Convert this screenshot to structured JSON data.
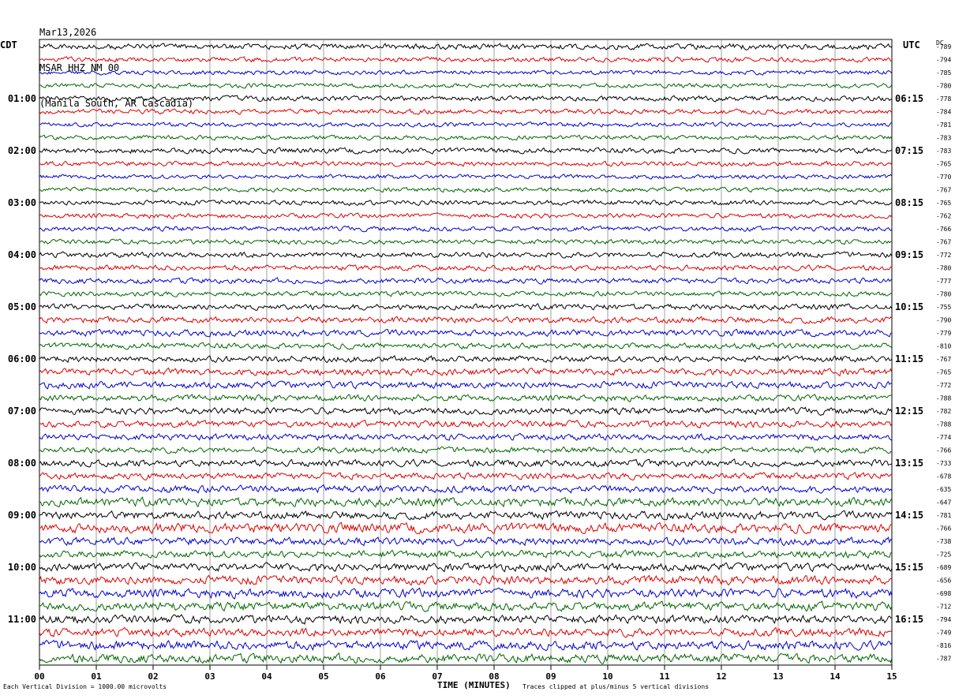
{
  "header": {
    "date": "Mar13,2026",
    "station": "MSAR HHZ NM 00",
    "location": "(Manila South, AR Cascadia)"
  },
  "chart_data": {
    "type": "line",
    "left_tz": "CDT",
    "right_tz": "UTC",
    "dc_label": "DC",
    "xlabel": "TIME (MINUTES)",
    "xticks": [
      "00",
      "01",
      "02",
      "03",
      "04",
      "05",
      "06",
      "07",
      "08",
      "09",
      "10",
      "11",
      "12",
      "13",
      "14",
      "15"
    ],
    "xlim": [
      0,
      15
    ],
    "left_hour_labels": [
      "01:00",
      "02:00",
      "03:00",
      "04:00",
      "05:00",
      "06:00",
      "07:00",
      "08:00",
      "09:00",
      "10:00",
      "11:00"
    ],
    "right_hour_labels": [
      "06:15",
      "07:15",
      "08:15",
      "09:15",
      "10:15",
      "11:15",
      "12:15",
      "13:15",
      "14:15",
      "15:15",
      "16:15"
    ],
    "trace_colors": [
      "#000000",
      "#dd0000",
      "#0000cc",
      "#006600"
    ],
    "dc_offsets": [
      -789,
      -794,
      -785,
      -780,
      -778,
      -784,
      -781,
      -783,
      -783,
      -765,
      -770,
      -767,
      -765,
      -762,
      -766,
      -767,
      -772,
      -780,
      -777,
      -780,
      -755,
      -790,
      -779,
      -810,
      -767,
      -765,
      -772,
      -788,
      -782,
      -788,
      -774,
      -766,
      -733,
      -678,
      -635,
      -647,
      -781,
      -766,
      -738,
      -725,
      -689,
      -656,
      -698,
      -712,
      -794,
      -749,
      -816,
      -787
    ],
    "amplitudes": [
      1.2,
      1.0,
      0.9,
      0.9,
      1.1,
      1.0,
      0.9,
      0.9,
      1.1,
      1.0,
      0.9,
      0.9,
      1.0,
      1.0,
      1.0,
      1.0,
      1.1,
      1.1,
      1.1,
      1.0,
      1.2,
      1.3,
      1.3,
      1.2,
      1.3,
      1.4,
      1.4,
      1.3,
      1.4,
      1.4,
      1.3,
      1.2,
      1.4,
      1.3,
      1.5,
      1.8,
      1.6,
      2.0,
      1.6,
      1.5,
      1.6,
      1.8,
      1.9,
      1.8,
      1.7,
      1.7,
      1.8,
      1.8
    ],
    "grid": true
  },
  "footer": {
    "left_note": "Each Vertical Division = 1000.00 microvolts",
    "right_note": "Traces clipped at plus/minus 5 vertical divisions"
  }
}
